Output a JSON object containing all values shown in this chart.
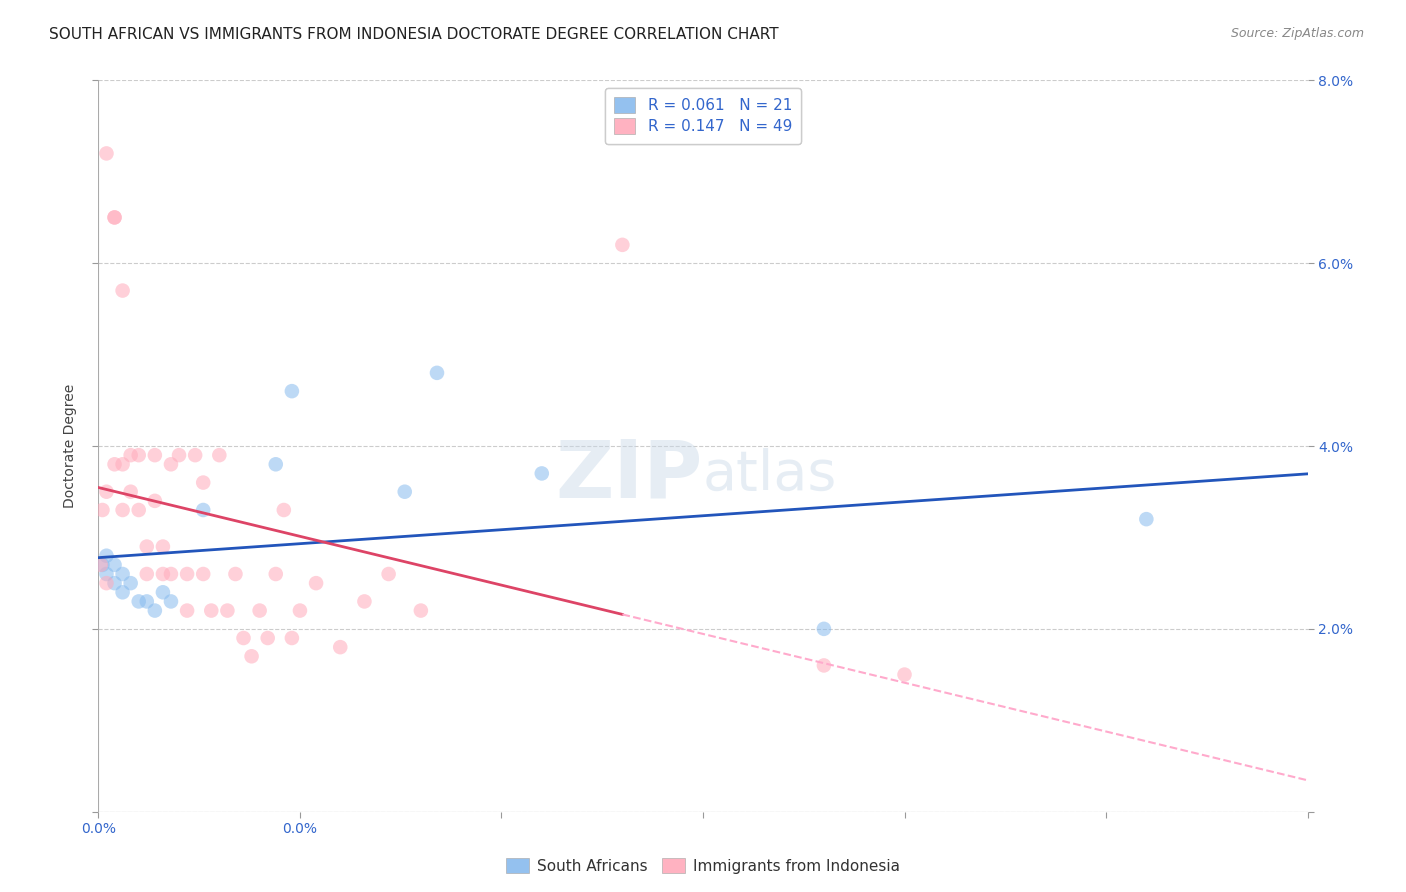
{
  "title": "SOUTH AFRICAN VS IMMIGRANTS FROM INDONESIA DOCTORATE DEGREE CORRELATION CHART",
  "source": "Source: ZipAtlas.com",
  "ylabel": "Doctorate Degree",
  "xlim": [
    0,
    0.15
  ],
  "ylim": [
    0,
    0.08
  ],
  "xticks": [
    0.0,
    0.025,
    0.05,
    0.075,
    0.1,
    0.125,
    0.15
  ],
  "xticklabels_visible": {
    "0.0": "0.0%"
  },
  "yticks": [
    0.0,
    0.02,
    0.04,
    0.06,
    0.08
  ],
  "yticklabels_right": [
    "",
    "2.0%",
    "4.0%",
    "6.0%",
    "8.0%"
  ],
  "blue_color": "#88BBEE",
  "pink_color": "#FFAABB",
  "blue_line_color": "#2255BB",
  "pink_line_color": "#DD4466",
  "pink_dash_color": "#FFAACC",
  "r_blue": 0.061,
  "n_blue": 21,
  "r_pink": 0.147,
  "n_pink": 49,
  "south_african_x": [
    0.0005,
    0.001,
    0.001,
    0.002,
    0.002,
    0.003,
    0.003,
    0.004,
    0.005,
    0.006,
    0.007,
    0.008,
    0.009,
    0.013,
    0.022,
    0.024,
    0.038,
    0.042,
    0.055,
    0.09,
    0.13
  ],
  "south_african_y": [
    0.027,
    0.028,
    0.026,
    0.027,
    0.025,
    0.024,
    0.026,
    0.025,
    0.023,
    0.023,
    0.022,
    0.024,
    0.023,
    0.033,
    0.038,
    0.046,
    0.035,
    0.048,
    0.037,
    0.02,
    0.032
  ],
  "indonesia_x": [
    0.0003,
    0.0005,
    0.001,
    0.001,
    0.001,
    0.002,
    0.002,
    0.002,
    0.003,
    0.003,
    0.003,
    0.004,
    0.004,
    0.005,
    0.005,
    0.006,
    0.006,
    0.007,
    0.007,
    0.008,
    0.008,
    0.009,
    0.009,
    0.01,
    0.011,
    0.011,
    0.012,
    0.013,
    0.013,
    0.014,
    0.015,
    0.016,
    0.017,
    0.018,
    0.019,
    0.02,
    0.021,
    0.022,
    0.023,
    0.024,
    0.025,
    0.027,
    0.03,
    0.033,
    0.036,
    0.04,
    0.065,
    0.09,
    0.1
  ],
  "indonesia_y": [
    0.027,
    0.033,
    0.072,
    0.035,
    0.025,
    0.065,
    0.065,
    0.038,
    0.057,
    0.038,
    0.033,
    0.039,
    0.035,
    0.039,
    0.033,
    0.029,
    0.026,
    0.039,
    0.034,
    0.029,
    0.026,
    0.038,
    0.026,
    0.039,
    0.026,
    0.022,
    0.039,
    0.036,
    0.026,
    0.022,
    0.039,
    0.022,
    0.026,
    0.019,
    0.017,
    0.022,
    0.019,
    0.026,
    0.033,
    0.019,
    0.022,
    0.025,
    0.018,
    0.023,
    0.026,
    0.022,
    0.062,
    0.016,
    0.015
  ],
  "background_color": "#FFFFFF",
  "grid_color": "#CCCCCC",
  "title_fontsize": 11,
  "label_fontsize": 10,
  "tick_fontsize": 10,
  "legend_fontsize": 11,
  "marker_size": 110,
  "alpha": 0.55,
  "watermark_color": "#C8D8E8",
  "watermark_alpha": 0.45
}
